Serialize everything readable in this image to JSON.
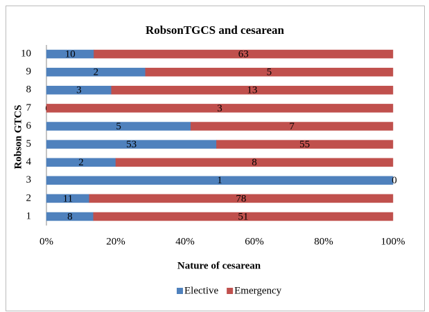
{
  "chart_data": {
    "type": "bar",
    "orientation": "horizontal",
    "stacking": "percent",
    "title": "RobsonTGCS and cesarean",
    "x_label": "Nature of cesarean",
    "y_label": "Robson GTCS",
    "categories": [
      "1",
      "2",
      "3",
      "4",
      "5",
      "6",
      "7",
      "8",
      "9",
      "10"
    ],
    "series": [
      {
        "name": "Elective",
        "color": "#4f81bd",
        "values": [
          8,
          11,
          1,
          2,
          53,
          5,
          0,
          3,
          2,
          10
        ]
      },
      {
        "name": "Emergency",
        "color": "#c0504d",
        "values": [
          51,
          78,
          0,
          8,
          55,
          7,
          3,
          13,
          5,
          63
        ]
      }
    ],
    "xlim": [
      0,
      100
    ],
    "xticks": [
      {
        "value": 0,
        "label": "0%"
      },
      {
        "value": 20,
        "label": "20%"
      },
      {
        "value": 40,
        "label": "40%"
      },
      {
        "value": 60,
        "label": "60%"
      },
      {
        "value": 80,
        "label": "80%"
      },
      {
        "value": 100,
        "label": "100%"
      }
    ],
    "grid": false,
    "legend": "bottom"
  }
}
